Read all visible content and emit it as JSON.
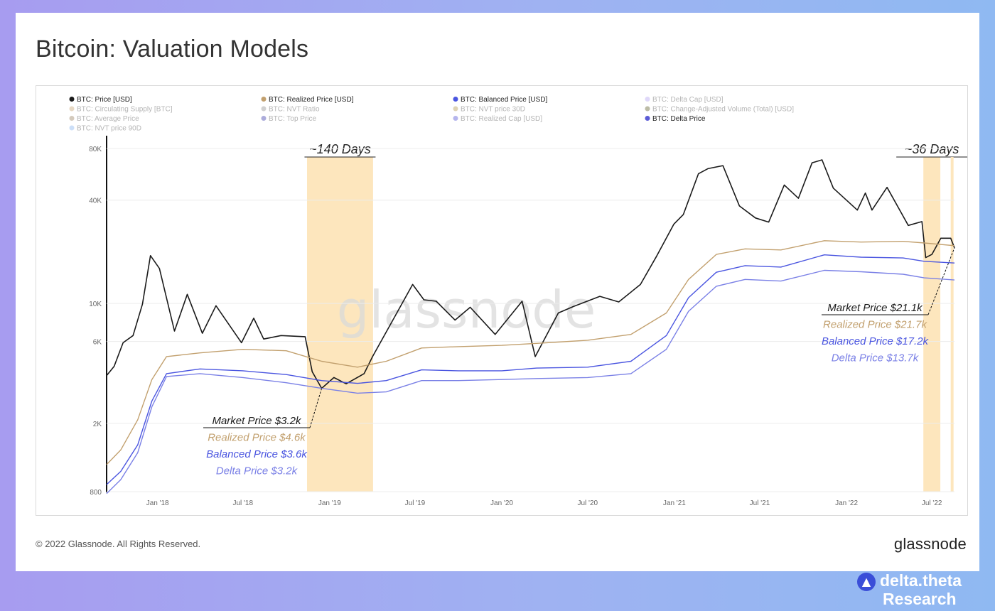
{
  "title": "Bitcoin: Valuation Models",
  "footer": {
    "copyright": "© 2022 Glassnode. All Rights Reserved.",
    "logo": "glassnode"
  },
  "brand": {
    "icon": "triangle-logo-icon",
    "name": "delta.theta",
    "sub": "Research"
  },
  "colors": {
    "price": "#1a1a1a",
    "realized": "#c2a06e",
    "balanced": "#4a55e0",
    "delta": "#7a80e6",
    "highlight": "#fde6bd"
  },
  "chart_data": {
    "type": "line",
    "watermark": "glassnode",
    "yscale": "log",
    "ylim": [
      800,
      80000
    ],
    "xlim": [
      "2017-09-15",
      "2022-08-18"
    ],
    "y_ticks": [
      {
        "label": "80K",
        "value": 80000
      },
      {
        "label": "40K",
        "value": 40000
      },
      {
        "label": "10K",
        "value": 10000
      },
      {
        "label": "6K",
        "value": 6000
      },
      {
        "label": "2K",
        "value": 2000
      },
      {
        "label": "800",
        "value": 800
      }
    ],
    "x_ticks": [
      {
        "label": "Jan '18",
        "date": "2018-01-01"
      },
      {
        "label": "Jul '18",
        "date": "2018-07-01"
      },
      {
        "label": "Jan '19",
        "date": "2019-01-01"
      },
      {
        "label": "Jul '19",
        "date": "2019-07-01"
      },
      {
        "label": "Jan '20",
        "date": "2020-01-01"
      },
      {
        "label": "Jul '20",
        "date": "2020-07-01"
      },
      {
        "label": "Jan '21",
        "date": "2021-01-01"
      },
      {
        "label": "Jul '21",
        "date": "2021-07-01"
      },
      {
        "label": "Jan '22",
        "date": "2022-01-01"
      },
      {
        "label": "Jul '22",
        "date": "2022-07-01"
      }
    ],
    "legend": [
      {
        "label": "BTC: Price [USD]",
        "color": "#1a1a1a",
        "active": true
      },
      {
        "label": "BTC: Realized Price [USD]",
        "color": "#c2a06e",
        "active": true
      },
      {
        "label": "BTC: Balanced Price [USD]",
        "color": "#4a55e0",
        "active": true
      },
      {
        "label": "BTC: Delta Cap [USD]",
        "color": "#b7a8f2",
        "active": false
      },
      {
        "label": "BTC: Circulating Supply [BTC]",
        "color": "#c9a97a",
        "active": false
      },
      {
        "label": "BTC: NVT Ratio",
        "color": "#999999",
        "active": false
      },
      {
        "label": "BTC: NVT price 30D",
        "color": "#b8a058",
        "active": false
      },
      {
        "label": "BTC: Change-Adjusted Volume (Total) [USD]",
        "color": "#6b6b3a",
        "active": false
      },
      {
        "label": "BTC: Average Price",
        "color": "#a08a6a",
        "active": false
      },
      {
        "label": "BTC: Top Price",
        "color": "#4848b0",
        "active": false
      },
      {
        "label": "BTC: Realized Cap [USD]",
        "color": "#5b5bd6",
        "active": false
      },
      {
        "label": "BTC: Delta Price",
        "color": "#5b5bd6",
        "active": true
      },
      {
        "label": "BTC: NVT price 90D",
        "color": "#8fb8f0",
        "active": false
      }
    ],
    "series": [
      {
        "name": "BTC: Price [USD]",
        "color": "#1a1a1a",
        "points": [
          [
            "2017-09-15",
            3800
          ],
          [
            "2017-10-01",
            4300
          ],
          [
            "2017-10-20",
            5900
          ],
          [
            "2017-11-10",
            6500
          ],
          [
            "2017-11-30",
            9900
          ],
          [
            "2017-12-17",
            19000
          ],
          [
            "2018-01-05",
            16000
          ],
          [
            "2018-02-06",
            6900
          ],
          [
            "2018-03-05",
            11300
          ],
          [
            "2018-04-06",
            6700
          ],
          [
            "2018-05-05",
            9700
          ],
          [
            "2018-06-28",
            5900
          ],
          [
            "2018-07-24",
            8200
          ],
          [
            "2018-08-14",
            6200
          ],
          [
            "2018-09-20",
            6500
          ],
          [
            "2018-11-10",
            6400
          ],
          [
            "2018-11-25",
            4000
          ],
          [
            "2018-12-15",
            3200
          ],
          [
            "2019-01-10",
            3700
          ],
          [
            "2019-02-05",
            3400
          ],
          [
            "2019-03-15",
            3900
          ],
          [
            "2019-04-02",
            4900
          ],
          [
            "2019-05-15",
            8000
          ],
          [
            "2019-06-26",
            12900
          ],
          [
            "2019-07-20",
            10500
          ],
          [
            "2019-08-15",
            10300
          ],
          [
            "2019-09-24",
            8000
          ],
          [
            "2019-10-26",
            9500
          ],
          [
            "2019-12-18",
            6600
          ],
          [
            "2020-02-13",
            10300
          ],
          [
            "2020-03-12",
            4900
          ],
          [
            "2020-04-30",
            8800
          ],
          [
            "2020-06-01",
            9600
          ],
          [
            "2020-07-27",
            11000
          ],
          [
            "2020-09-05",
            10200
          ],
          [
            "2020-10-21",
            12900
          ],
          [
            "2020-11-25",
            19000
          ],
          [
            "2020-12-31",
            29000
          ],
          [
            "2021-01-20",
            33000
          ],
          [
            "2021-02-21",
            57000
          ],
          [
            "2021-03-13",
            61000
          ],
          [
            "2021-04-14",
            63500
          ],
          [
            "2021-05-19",
            37000
          ],
          [
            "2021-06-22",
            31500
          ],
          [
            "2021-07-20",
            29800
          ],
          [
            "2021-08-22",
            49000
          ],
          [
            "2021-09-21",
            41000
          ],
          [
            "2021-10-20",
            66000
          ],
          [
            "2021-11-10",
            68700
          ],
          [
            "2021-12-04",
            47000
          ],
          [
            "2022-01-24",
            35000
          ],
          [
            "2022-02-10",
            44000
          ],
          [
            "2022-02-24",
            35000
          ],
          [
            "2022-03-28",
            47500
          ],
          [
            "2022-05-12",
            28500
          ],
          [
            "2022-06-10",
            30000
          ],
          [
            "2022-06-18",
            18500
          ],
          [
            "2022-07-01",
            19300
          ],
          [
            "2022-07-20",
            24000
          ],
          [
            "2022-08-10",
            24000
          ],
          [
            "2022-08-18",
            21100
          ]
        ]
      },
      {
        "name": "BTC: Realized Price [USD]",
        "color": "#c2a06e",
        "points": [
          [
            "2017-09-15",
            1150
          ],
          [
            "2017-10-15",
            1400
          ],
          [
            "2017-11-20",
            2100
          ],
          [
            "2017-12-20",
            3600
          ],
          [
            "2018-01-20",
            4900
          ],
          [
            "2018-04-01",
            5150
          ],
          [
            "2018-07-01",
            5400
          ],
          [
            "2018-10-01",
            5300
          ],
          [
            "2018-12-15",
            4600
          ],
          [
            "2019-03-01",
            4250
          ],
          [
            "2019-05-01",
            4600
          ],
          [
            "2019-07-15",
            5500
          ],
          [
            "2019-10-01",
            5600
          ],
          [
            "2020-01-01",
            5700
          ],
          [
            "2020-03-15",
            5850
          ],
          [
            "2020-07-01",
            6100
          ],
          [
            "2020-10-01",
            6600
          ],
          [
            "2020-12-15",
            8800
          ],
          [
            "2021-01-31",
            13800
          ],
          [
            "2021-03-31",
            19300
          ],
          [
            "2021-05-31",
            20800
          ],
          [
            "2021-08-15",
            20500
          ],
          [
            "2021-11-15",
            23200
          ],
          [
            "2022-02-01",
            22800
          ],
          [
            "2022-05-01",
            23000
          ],
          [
            "2022-06-15",
            22500
          ],
          [
            "2022-08-18",
            21700
          ]
        ]
      },
      {
        "name": "BTC: Balanced Price [USD]",
        "color": "#4a55e0",
        "points": [
          [
            "2017-09-15",
            880
          ],
          [
            "2017-10-15",
            1050
          ],
          [
            "2017-11-20",
            1500
          ],
          [
            "2017-12-20",
            2700
          ],
          [
            "2018-01-20",
            3900
          ],
          [
            "2018-04-01",
            4150
          ],
          [
            "2018-07-01",
            4050
          ],
          [
            "2018-10-01",
            3850
          ],
          [
            "2018-12-15",
            3550
          ],
          [
            "2019-03-01",
            3420
          ],
          [
            "2019-05-01",
            3550
          ],
          [
            "2019-07-15",
            4100
          ],
          [
            "2019-10-01",
            4050
          ],
          [
            "2020-01-01",
            4050
          ],
          [
            "2020-03-15",
            4200
          ],
          [
            "2020-07-01",
            4250
          ],
          [
            "2020-10-01",
            4600
          ],
          [
            "2020-12-15",
            6500
          ],
          [
            "2021-01-31",
            10800
          ],
          [
            "2021-03-31",
            15200
          ],
          [
            "2021-05-31",
            16600
          ],
          [
            "2021-08-15",
            16300
          ],
          [
            "2021-11-15",
            19200
          ],
          [
            "2022-02-01",
            18600
          ],
          [
            "2022-05-01",
            18400
          ],
          [
            "2022-06-15",
            17600
          ],
          [
            "2022-08-18",
            17200
          ]
        ]
      },
      {
        "name": "BTC: Delta Price",
        "color": "#7a80e6",
        "points": [
          [
            "2017-09-15",
            780
          ],
          [
            "2017-10-15",
            940
          ],
          [
            "2017-11-20",
            1350
          ],
          [
            "2017-12-20",
            2500
          ],
          [
            "2018-01-20",
            3750
          ],
          [
            "2018-04-01",
            3900
          ],
          [
            "2018-07-01",
            3700
          ],
          [
            "2018-10-01",
            3450
          ],
          [
            "2018-12-15",
            3200
          ],
          [
            "2019-03-01",
            3000
          ],
          [
            "2019-05-01",
            3050
          ],
          [
            "2019-07-15",
            3550
          ],
          [
            "2019-10-01",
            3550
          ],
          [
            "2020-01-01",
            3600
          ],
          [
            "2020-03-15",
            3650
          ],
          [
            "2020-07-01",
            3700
          ],
          [
            "2020-10-01",
            3900
          ],
          [
            "2020-12-15",
            5400
          ],
          [
            "2021-01-31",
            9000
          ],
          [
            "2021-03-31",
            12600
          ],
          [
            "2021-05-31",
            13800
          ],
          [
            "2021-08-15",
            13500
          ],
          [
            "2021-11-15",
            15600
          ],
          [
            "2022-02-01",
            15300
          ],
          [
            "2022-05-01",
            14800
          ],
          [
            "2022-06-15",
            14100
          ],
          [
            "2022-08-18",
            13700
          ]
        ]
      }
    ],
    "highlights": [
      {
        "from": "2018-11-14",
        "to": "2019-04-03",
        "label": "~140 Days"
      },
      {
        "from": "2022-06-13",
        "to": "2022-07-19",
        "label": "~36 Days"
      },
      {
        "from": "2022-08-10",
        "to": "2022-08-16",
        "label": ""
      }
    ],
    "annotations": [
      {
        "date": "2018-12-15",
        "lines": [
          {
            "text": "Market Price $3.2k",
            "series": "BTC: Price [USD]"
          },
          {
            "text": "Realized Price $4.6k",
            "series": "BTC: Realized Price [USD]"
          },
          {
            "text": "Balanced Price $3.6k",
            "series": "BTC: Balanced Price [USD]"
          },
          {
            "text": "Delta Price $3.2k",
            "series": "BTC: Delta Price"
          }
        ]
      },
      {
        "date": "2022-08-18",
        "lines": [
          {
            "text": "Market Price $21.1k",
            "series": "BTC: Price [USD]"
          },
          {
            "text": "Realized Price $21.7k",
            "series": "BTC: Realized Price [USD]"
          },
          {
            "text": "Balanced Price $17.2k",
            "series": "BTC: Balanced Price [USD]"
          },
          {
            "text": "Delta Price $13.7k",
            "series": "BTC: Delta Price"
          }
        ]
      }
    ]
  }
}
